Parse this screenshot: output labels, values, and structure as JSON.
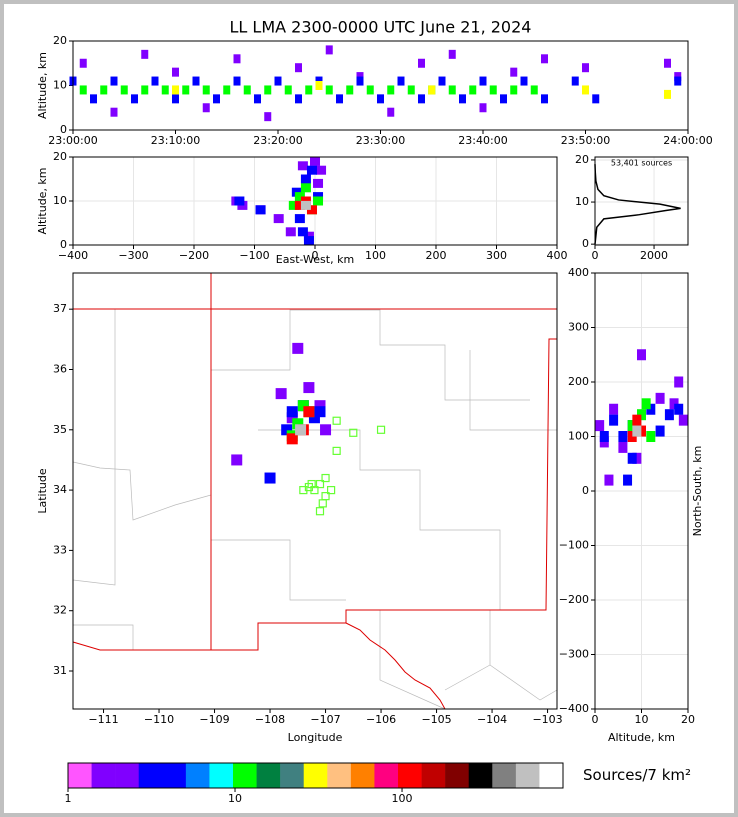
{
  "chart_data": [
    {
      "type": "scatter",
      "title": "LL LMA 2300-0000 UTC June 21, 2024",
      "ylabel": "Altitude, km",
      "xlim": [
        0,
        60
      ],
      "xticks": [
        {
          "value": 0,
          "label": "23:00:00"
        },
        {
          "value": 10,
          "label": "23:10:00"
        },
        {
          "value": 20,
          "label": "23:20:00"
        },
        {
          "value": 30,
          "label": "23:30:00"
        },
        {
          "value": 40,
          "label": "23:40:00"
        },
        {
          "value": 50,
          "label": "23:50:00"
        },
        {
          "value": 60,
          "label": "24:00:00"
        }
      ],
      "ylim": [
        0,
        20
      ],
      "yticks": [
        0,
        10,
        20
      ],
      "grid": false,
      "series": [
        {
          "color": "#8000ff",
          "x": [
            1,
            4,
            7,
            10,
            13,
            16,
            19,
            22,
            25,
            28,
            31,
            34,
            37,
            40,
            43,
            46,
            50,
            58,
            59
          ],
          "y": [
            15,
            4,
            17,
            13,
            5,
            16,
            3,
            14,
            18,
            12,
            4,
            15,
            17,
            5,
            13,
            16,
            14,
            15,
            12
          ]
        },
        {
          "color": "#0000ff",
          "x": [
            0,
            2,
            4,
            6,
            8,
            10,
            12,
            14,
            16,
            18,
            20,
            22,
            24,
            26,
            28,
            30,
            32,
            34,
            36,
            38,
            40,
            42,
            44,
            46,
            49,
            51,
            59
          ],
          "y": [
            11,
            7,
            11,
            7,
            11,
            7,
            11,
            7,
            11,
            7,
            11,
            7,
            11,
            7,
            11,
            7,
            11,
            7,
            11,
            7,
            11,
            7,
            11,
            7,
            11,
            7,
            11
          ]
        },
        {
          "color": "#00ff00",
          "x": [
            1,
            3,
            5,
            7,
            9,
            11,
            13,
            15,
            17,
            19,
            21,
            23,
            25,
            27,
            29,
            31,
            33,
            35,
            37,
            39,
            41,
            43,
            45
          ],
          "y": [
            9,
            9,
            9,
            9,
            9,
            9,
            9,
            9,
            9,
            9,
            9,
            9,
            9,
            9,
            9,
            9,
            9,
            9,
            9,
            9,
            9,
            9,
            9
          ]
        },
        {
          "color": "#ffff00",
          "x": [
            10,
            24,
            35,
            50,
            58
          ],
          "y": [
            9,
            10,
            9,
            9,
            8
          ]
        }
      ]
    },
    {
      "type": "scatter",
      "ylabel": "Altitude, km",
      "xlabel": "East-West, km",
      "xlim": [
        -400,
        400
      ],
      "xticks": [
        {
          "value": -400,
          "label": "−400"
        },
        {
          "value": -300,
          "label": "−300"
        },
        {
          "value": -200,
          "label": "−200"
        },
        {
          "value": -100,
          "label": "−100"
        },
        0,
        100,
        200,
        300,
        400
      ],
      "ylim": [
        0,
        20
      ],
      "yticks": [
        0,
        10,
        20
      ],
      "grid": true,
      "series": [
        {
          "color": "#8000ff",
          "x": [
            -130,
            -120,
            -90,
            -60,
            -40,
            -20,
            0,
            10,
            -10,
            5
          ],
          "y": [
            10,
            9,
            8,
            6,
            3,
            18,
            19,
            17,
            2,
            14
          ]
        },
        {
          "color": "#0000ff",
          "x": [
            -125,
            -90,
            -30,
            -25,
            -15,
            -5,
            5,
            -20,
            -10
          ],
          "y": [
            10,
            8,
            12,
            6,
            15,
            17,
            11,
            3,
            1
          ]
        },
        {
          "color": "#00ff00",
          "x": [
            -35,
            -25,
            -15,
            -5,
            5
          ],
          "y": [
            9,
            11,
            13,
            8,
            10
          ]
        },
        {
          "color": "#ff0000",
          "x": [
            -25,
            -15,
            -5
          ],
          "y": [
            9,
            10,
            8
          ]
        },
        {
          "color": "#c0c0c0",
          "x": [
            -15
          ],
          "y": [
            9
          ]
        }
      ]
    },
    {
      "type": "line",
      "annotation": "53,401 sources",
      "color": "#000000",
      "xlim": [
        0,
        3150
      ],
      "xticks": [
        0,
        2000
      ],
      "ylim": [
        -0.2,
        20.7
      ],
      "yticks": [
        0,
        10,
        20
      ],
      "grid": true,
      "x": [
        0,
        30,
        60,
        300,
        1500,
        2400,
        2900,
        2200,
        800,
        300,
        100,
        30,
        10,
        0
      ],
      "y": [
        0,
        2,
        4,
        6,
        7,
        8,
        8.5,
        9.5,
        10.5,
        11.5,
        13,
        15,
        17,
        19
      ]
    },
    {
      "type": "scatter",
      "xlabel": "Longitude",
      "ylabel": "Latitude",
      "xlim": [
        -111.55,
        -102.83
      ],
      "xticks": [
        {
          "value": -111,
          "label": "−111"
        },
        {
          "value": -110,
          "label": "−110"
        },
        {
          "value": -109,
          "label": "−109"
        },
        {
          "value": -108,
          "label": "−108"
        },
        {
          "value": -107,
          "label": "−107"
        },
        {
          "value": -106,
          "label": "−106"
        },
        {
          "value": -105,
          "label": "−105"
        },
        {
          "value": -104,
          "label": "−104"
        },
        {
          "value": -103,
          "label": "−103"
        }
      ],
      "ylim": [
        30.37,
        37.6
      ],
      "yticks": [
        31,
        32,
        33,
        34,
        35,
        36,
        37
      ],
      "grid": false,
      "series": [
        {
          "color": "#8000ff",
          "x": [
            -107.8,
            -107.6,
            -107.1,
            -107.3,
            -107.5,
            -108.6,
            -107.0
          ],
          "y": [
            35.6,
            35.2,
            35.4,
            35.7,
            36.35,
            34.5,
            35.0
          ]
        },
        {
          "color": "#0000ff",
          "x": [
            -107.6,
            -107.4,
            -107.2,
            -107.7,
            -108.0,
            -107.1
          ],
          "y": [
            35.3,
            35.4,
            35.2,
            35.0,
            34.2,
            35.3
          ]
        },
        {
          "color": "#00ff00",
          "x": [
            -107.5,
            -107.3,
            -107.6,
            -107.4
          ],
          "y": [
            35.1,
            35.3,
            34.9,
            35.4
          ]
        },
        {
          "color": "#ff0000",
          "x": [
            -107.6,
            -107.4,
            -107.3
          ],
          "y": [
            34.85,
            35.0,
            35.3
          ]
        },
        {
          "color": "#c0c0c0",
          "x": [
            -107.45
          ],
          "y": [
            35.0
          ]
        },
        {
          "color": "#66ff33",
          "marker": "open-square",
          "x": [
            -106.8,
            -106.5,
            -106.0,
            -106.8,
            -107.0,
            -107.1,
            -107.2,
            -107.3,
            -107.0,
            -107.1,
            -106.9,
            -107.05,
            -107.4,
            -107.25
          ],
          "y": [
            35.15,
            34.95,
            35.0,
            34.65,
            34.2,
            34.1,
            34.0,
            34.05,
            33.9,
            33.65,
            34.0,
            33.78,
            34.0,
            34.1
          ]
        }
      ]
    },
    {
      "type": "scatter",
      "xlabel": "Altitude, km",
      "ylabel": "North-South, km",
      "xlim": [
        0,
        20
      ],
      "xticks": [
        0,
        10,
        20
      ],
      "ylim": [
        -400,
        400
      ],
      "yticks": [
        {
          "value": -400,
          "label": "−400"
        },
        {
          "value": -300,
          "label": "−300"
        },
        {
          "value": -200,
          "label": "−200"
        },
        {
          "value": -100,
          "label": "−100"
        },
        0,
        100,
        200,
        300,
        400
      ],
      "grid": true,
      "series": [
        {
          "color": "#8000ff",
          "x": [
            1,
            2,
            4,
            6,
            14,
            17,
            19,
            9,
            10,
            3,
            18
          ],
          "y": [
            120,
            90,
            150,
            80,
            170,
            160,
            130,
            60,
            250,
            20,
            200
          ]
        },
        {
          "color": "#0000ff",
          "x": [
            2,
            4,
            6,
            8,
            12,
            14,
            16,
            18,
            7,
            8
          ],
          "y": [
            100,
            130,
            100,
            120,
            150,
            110,
            140,
            150,
            20,
            60
          ]
        },
        {
          "color": "#00ff00",
          "x": [
            8,
            10,
            12,
            11
          ],
          "y": [
            120,
            140,
            100,
            160
          ]
        },
        {
          "color": "#ff0000",
          "x": [
            8,
            10,
            9
          ],
          "y": [
            100,
            110,
            130
          ]
        },
        {
          "color": "#c0c0c0",
          "x": [
            9
          ],
          "y": [
            110
          ]
        }
      ]
    },
    {
      "type": "colorbar",
      "label": "Sources/7 km²",
      "log": true,
      "xlim": [
        1,
        920
      ],
      "xticks": [
        1,
        10,
        100
      ],
      "colors": [
        "#ff55ff",
        "#8000ff",
        "#8000ff",
        "#0000ff",
        "#0000ff",
        "#0080ff",
        "#00ffff",
        "#00ff00",
        "#008040",
        "#408080",
        "#ffff00",
        "#ffc080",
        "#ff8000",
        "#ff0080",
        "#ff0000",
        "#c00000",
        "#800000",
        "#000000",
        "#808080",
        "#c0c0c0",
        "#ffffff"
      ]
    }
  ]
}
